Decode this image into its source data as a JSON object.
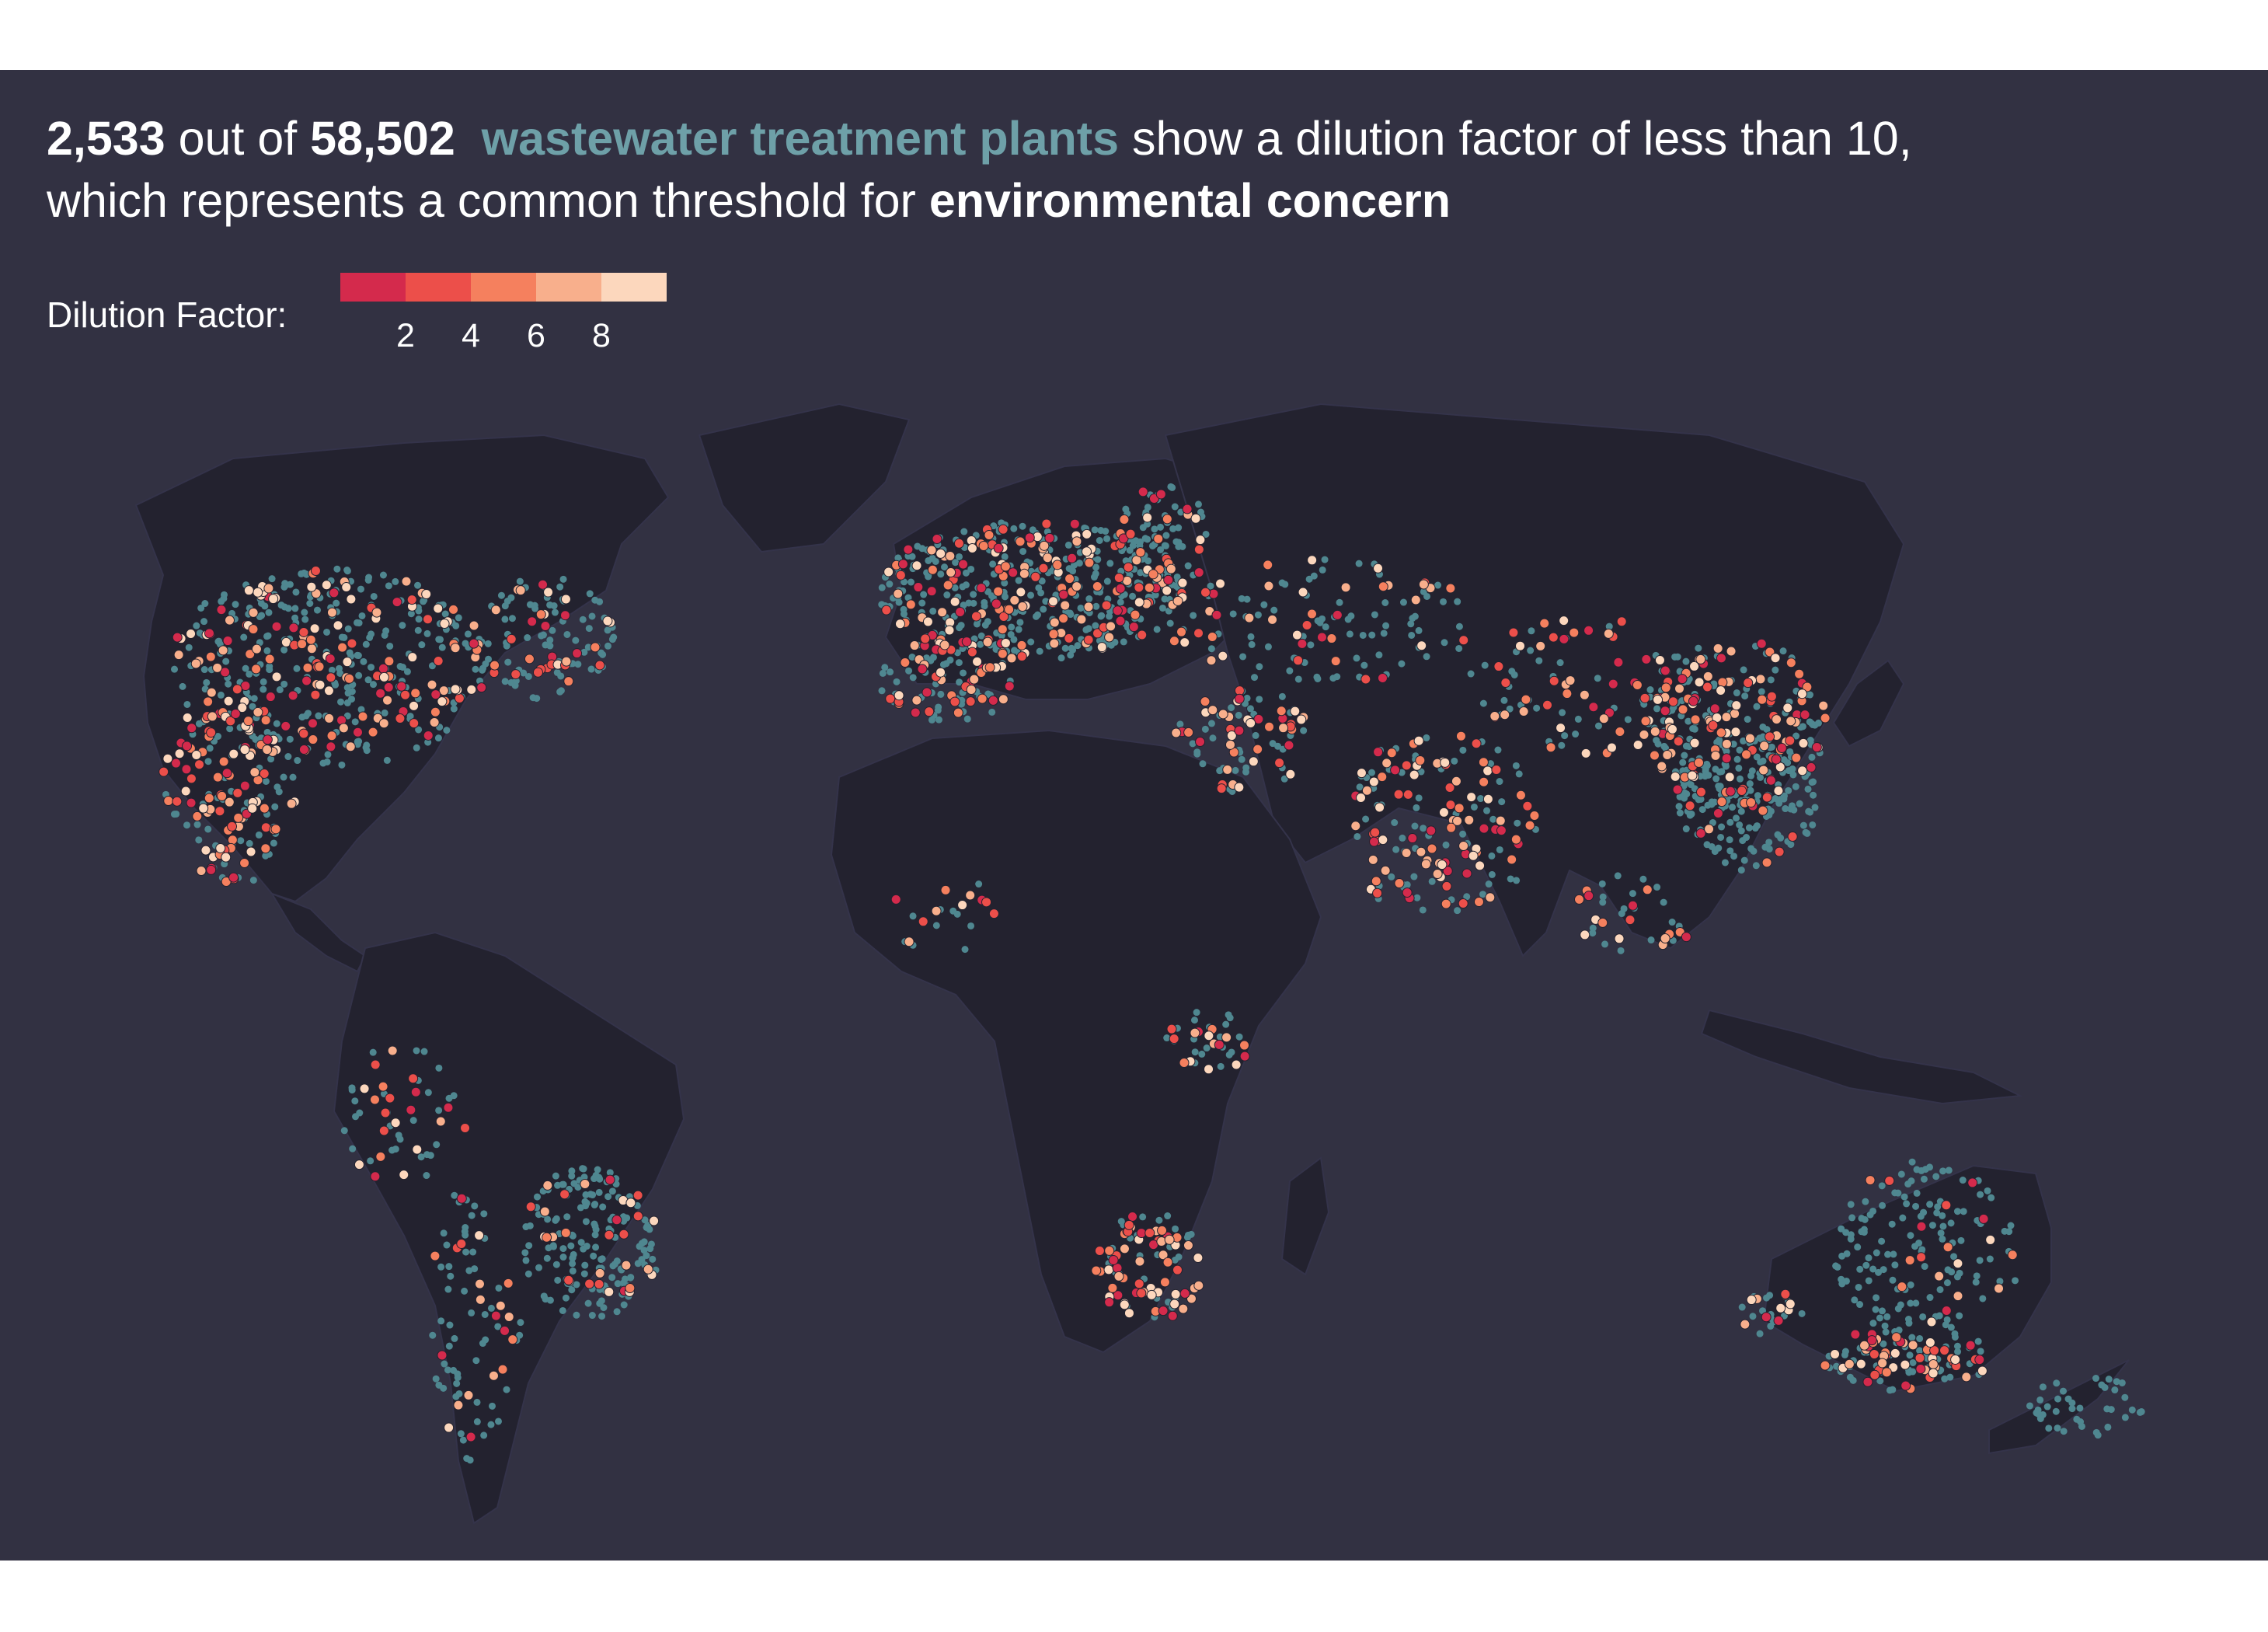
{
  "headline": {
    "count_low": "2,533",
    "text_out_of": " out of ",
    "count_total": "58,502",
    "highlight": "wastewater treatment plants",
    "text_rest_1": " show a dilution factor of less than 10,",
    "text_rest_2": "which represents a common threshold for ",
    "emphasis": "environmental concern"
  },
  "legend": {
    "label": "Dilution Factor:",
    "ticks": [
      "2",
      "4",
      "6",
      "8"
    ],
    "colors": [
      "#d42a4c",
      "#ec4f4a",
      "#f5805e",
      "#f8af8c",
      "#fcd7bd"
    ]
  },
  "colors": {
    "panel_background": "#323142",
    "land": "#23222f",
    "ok_plants": "#4f8790",
    "teal_text": "#6ea0a8"
  },
  "map": {
    "projection": "world map (continents)",
    "layers": [
      "country outlines",
      "plants with dilution factor >= 10 (teal)",
      "plants with dilution factor < 10 (colored by legend)"
    ]
  }
}
